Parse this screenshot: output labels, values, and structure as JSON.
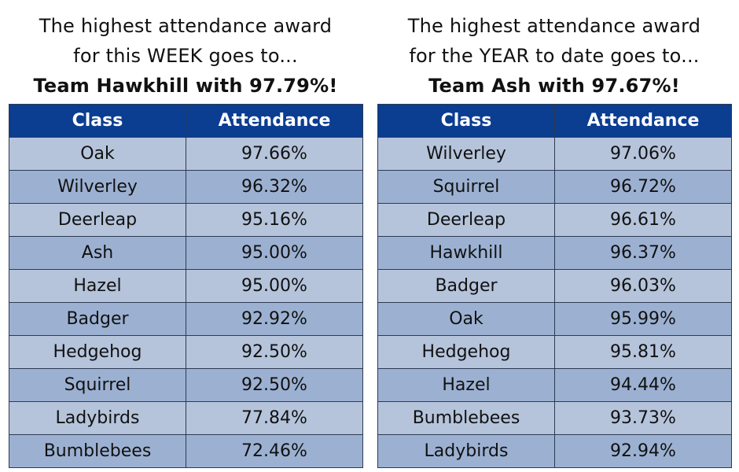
{
  "week": {
    "heading_line1": "The highest attendance award",
    "heading_line2": "for this WEEK goes to...",
    "winner": "Team Hawkhill with 97.79%!",
    "col_class": "Class",
    "col_attendance": "Attendance",
    "rows": [
      {
        "class": "Oak",
        "attendance": "97.66%"
      },
      {
        "class": "Wilverley",
        "attendance": "96.32%"
      },
      {
        "class": "Deerleap",
        "attendance": "95.16%"
      },
      {
        "class": "Ash",
        "attendance": "95.00%"
      },
      {
        "class": "Hazel",
        "attendance": "95.00%"
      },
      {
        "class": "Badger",
        "attendance": "92.92%"
      },
      {
        "class": "Hedgehog",
        "attendance": "92.50%"
      },
      {
        "class": "Squirrel",
        "attendance": "92.50%"
      },
      {
        "class": "Ladybirds",
        "attendance": "77.84%"
      },
      {
        "class": "Bumblebees",
        "attendance": "72.46%"
      }
    ]
  },
  "year": {
    "heading_line1": "The highest attendance award",
    "heading_line2": "for the YEAR to date goes to...",
    "winner": "Team Ash with 97.67%!",
    "col_class": "Class",
    "col_attendance": "Attendance",
    "rows": [
      {
        "class": "Wilverley",
        "attendance": "97.06%"
      },
      {
        "class": "Squirrel",
        "attendance": "96.72%"
      },
      {
        "class": "Deerleap",
        "attendance": "96.61%"
      },
      {
        "class": "Hawkhill",
        "attendance": "96.37%"
      },
      {
        "class": "Badger",
        "attendance": "96.03%"
      },
      {
        "class": "Oak",
        "attendance": "95.99%"
      },
      {
        "class": "Hedgehog",
        "attendance": "95.81%"
      },
      {
        "class": "Hazel",
        "attendance": "94.44%"
      },
      {
        "class": "Bumblebees",
        "attendance": "93.73%"
      },
      {
        "class": "Ladybirds",
        "attendance": "92.94%"
      }
    ]
  },
  "colors": {
    "header_bg": "#0b3d91",
    "row_light": "#b5c4db",
    "row_dark": "#9cb1d2"
  }
}
